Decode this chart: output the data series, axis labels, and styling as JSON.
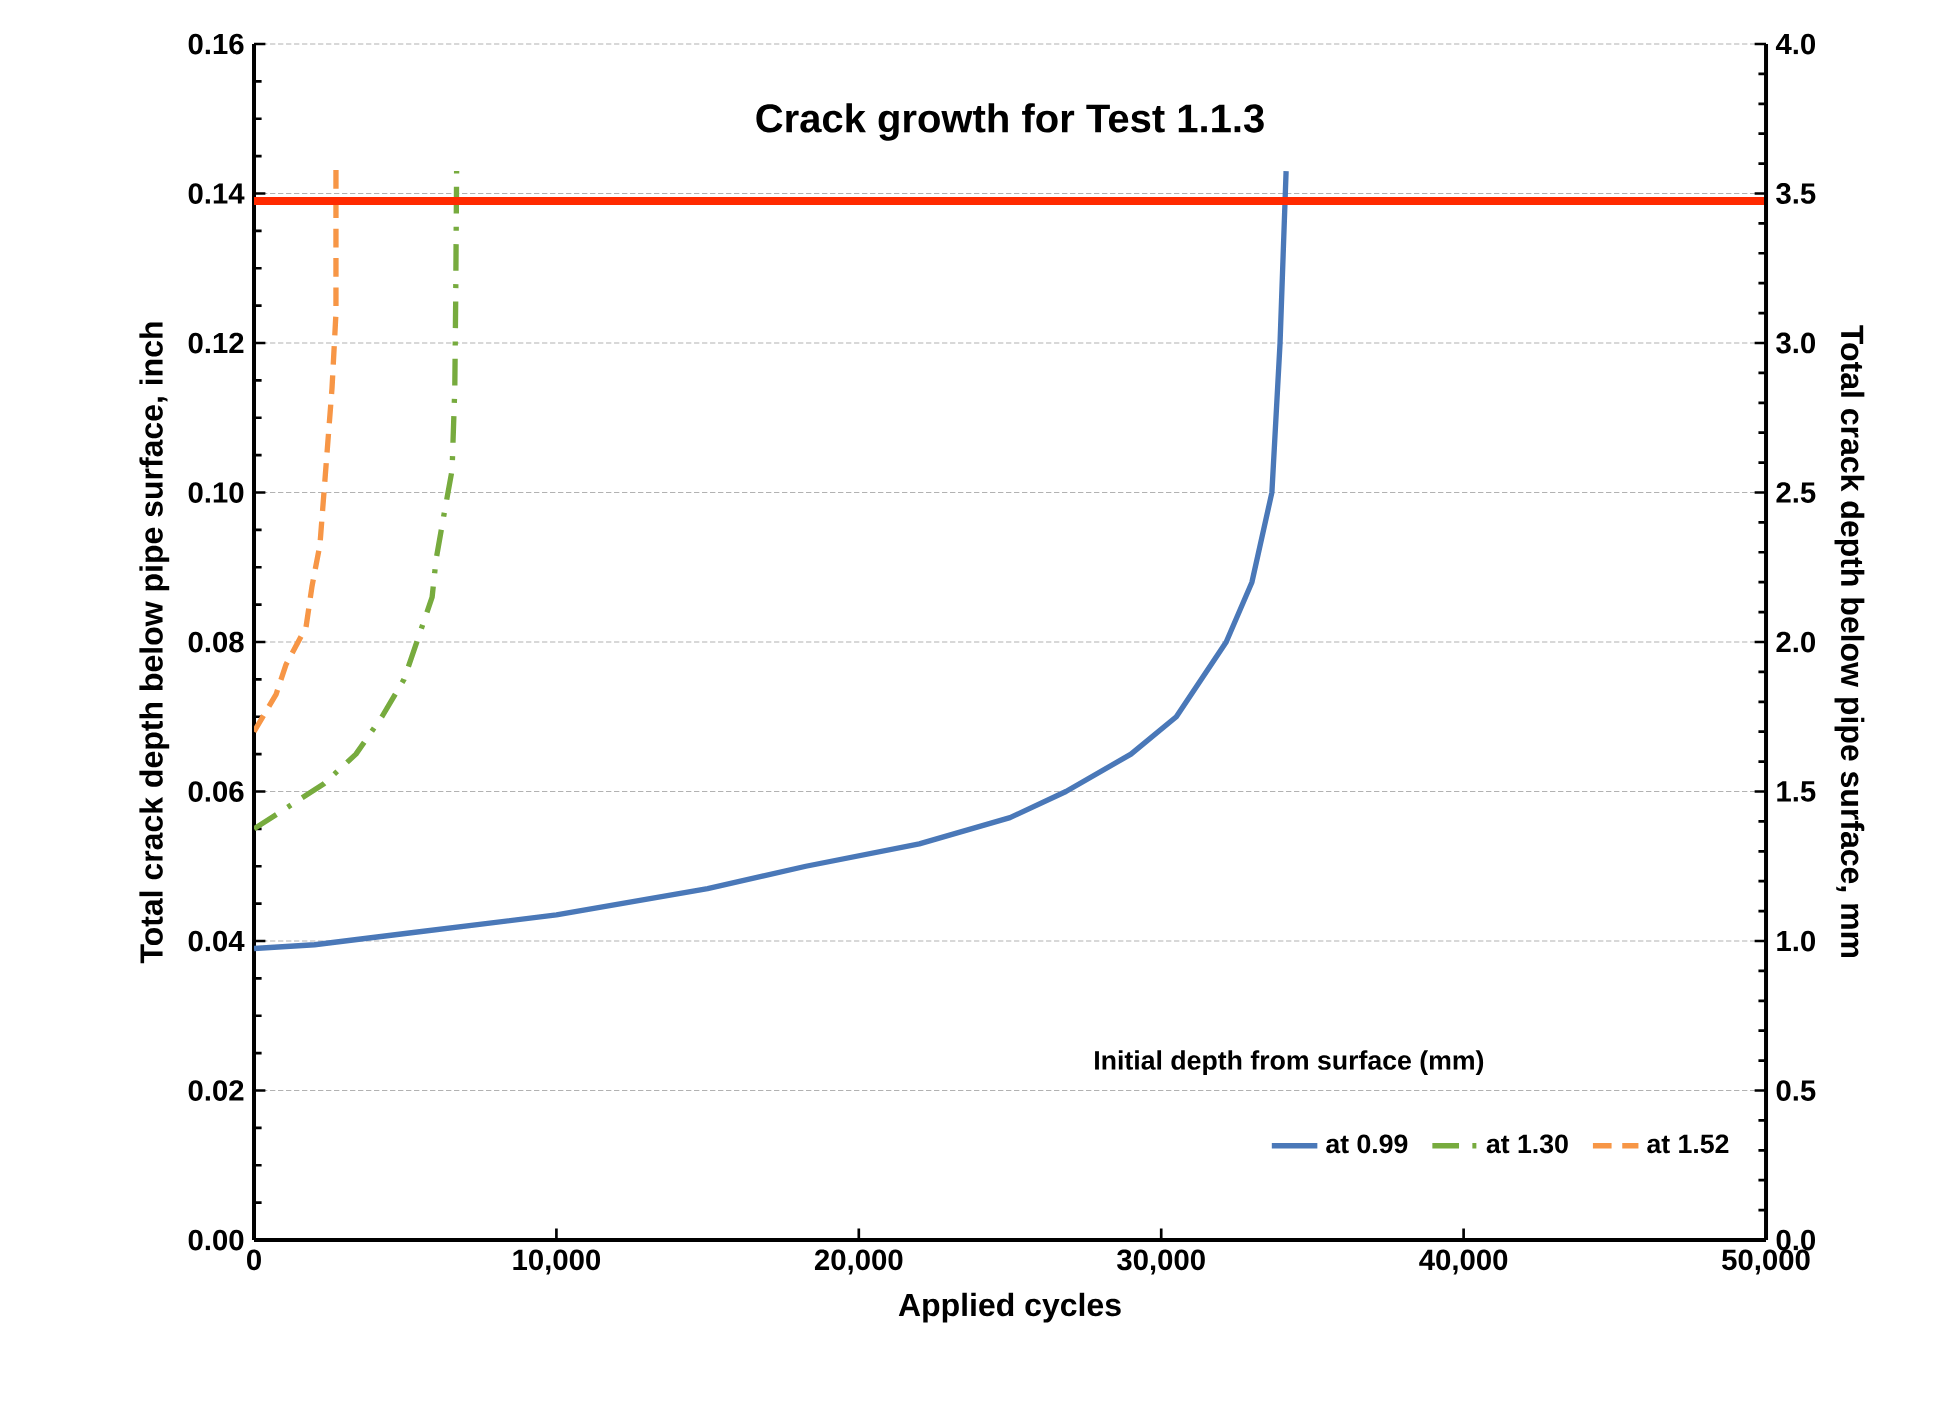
{
  "chart_data": {
    "type": "line",
    "title": "Crack growth for Test 1.1.3",
    "xlabel": "Applied cycles",
    "ylabel": "Total crack depth below pipe surface, inch",
    "y2label": "Total crack depth below pipe surface, mm",
    "legend_title": "Initial depth from surface (mm)",
    "legend": "bottom right",
    "grid": "y",
    "marker": "none",
    "xlim": [
      0,
      50000
    ],
    "xticks": [
      0,
      {
        "value": 10000,
        "label": "10,000"
      },
      {
        "value": 20000,
        "label": "20,000"
      },
      {
        "value": 30000,
        "label": "30,000"
      },
      {
        "value": 40000,
        "label": "40,000"
      },
      {
        "value": 50000,
        "label": "50,000"
      }
    ],
    "ylim": [
      0,
      0.16
    ],
    "yticks": [
      {
        "value": 0,
        "label": "0.00"
      },
      {
        "value": 0.02,
        "label": "0.02"
      },
      {
        "value": 0.04,
        "label": "0.04"
      },
      {
        "value": 0.06,
        "label": "0.06"
      },
      {
        "value": 0.08,
        "label": "0.08"
      },
      {
        "value": 0.1,
        "label": "0.10"
      },
      {
        "value": 0.12,
        "label": "0.12"
      },
      {
        "value": 0.14,
        "label": "0.14"
      },
      {
        "value": 0.16,
        "label": "0.16"
      }
    ],
    "y2lim": [
      0,
      4
    ],
    "y2ticks": [
      {
        "value": 0,
        "label": "0.0"
      },
      {
        "value": 0.5,
        "label": "0.5"
      },
      {
        "value": 1,
        "label": "1.0"
      },
      {
        "value": 1.5,
        "label": "1.5"
      },
      {
        "value": 2,
        "label": "2.0"
      },
      {
        "value": 2.5,
        "label": "2.5"
      },
      {
        "value": 3,
        "label": "3.0"
      },
      {
        "value": 3.5,
        "label": "3.5"
      },
      {
        "value": 4,
        "label": "4.0"
      }
    ],
    "ref_lines": [
      {
        "axis": "y",
        "value": 0.139,
        "color": "#ff2a00"
      }
    ],
    "series": [
      {
        "name": "at 0.99",
        "color": "#4a78b8",
        "line_style": "solid",
        "x": [
          0,
          2000,
          5000,
          10000,
          15000,
          18250,
          22000,
          25000,
          26850,
          29000,
          30500,
          32150,
          33000,
          33660,
          33930,
          34130
        ],
        "values": [
          0.039,
          0.0395,
          0.041,
          0.0435,
          0.047,
          0.05,
          0.053,
          0.0565,
          0.06,
          0.065,
          0.07,
          0.08,
          0.088,
          0.1,
          0.12,
          0.143
        ]
      },
      {
        "name": "at 1.30",
        "color": "#77ab3e",
        "line_style": "dashdot",
        "x": [
          0,
          2300,
          3370,
          4230,
          4960,
          5890,
          6020,
          6280,
          6550,
          6640,
          6670,
          6700
        ],
        "values": [
          0.055,
          0.061,
          0.065,
          0.07,
          0.075,
          0.086,
          0.091,
          0.097,
          0.103,
          0.114,
          0.126,
          0.143
        ]
      },
      {
        "name": "at 1.52",
        "color": "#f79646",
        "line_style": "dashed",
        "x": [
          0,
          730,
          1060,
          1720,
          1920,
          2180,
          2380,
          2580,
          2710,
          2710
        ],
        "values": [
          0.068,
          0.073,
          0.077,
          0.082,
          0.0875,
          0.093,
          0.1035,
          0.114,
          0.124,
          0.144
        ]
      }
    ]
  }
}
